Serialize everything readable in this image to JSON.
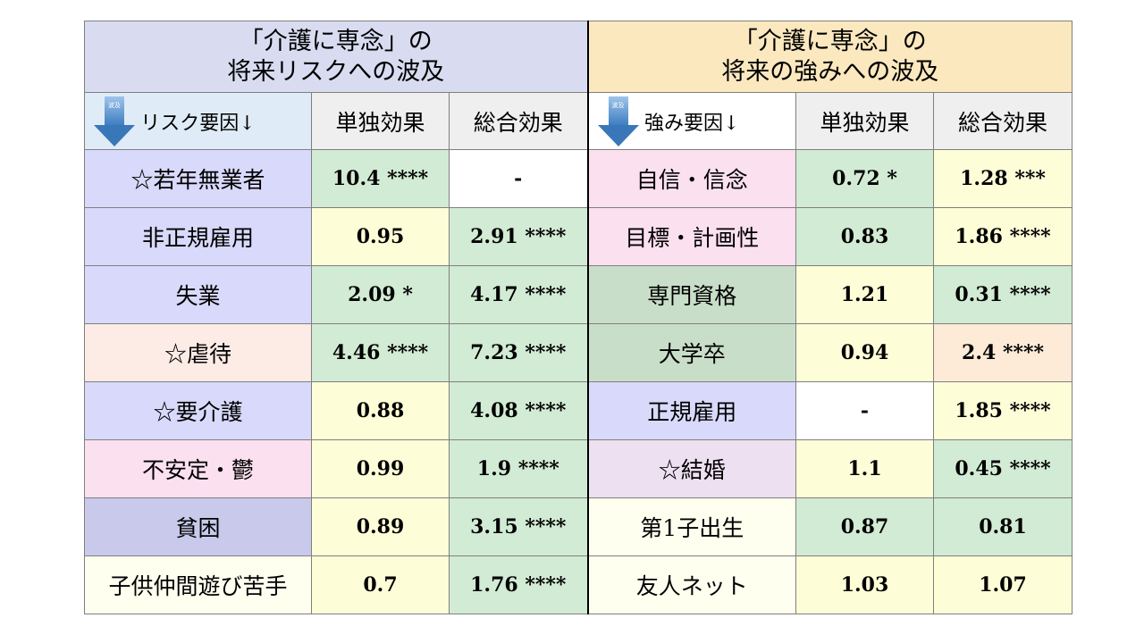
{
  "left_title": {
    "line1": "「介護に専念」の",
    "line2": "将来リスクへの波及"
  },
  "right_title": {
    "line1": "「介護に専念」の",
    "line2": "将来の強みへの波及"
  },
  "headers": {
    "left_factor": "リスク要因↓",
    "right_factor": "強み要因↓",
    "single": "単独効果",
    "total": "総合効果",
    "arrow_tag": "波及"
  },
  "rows": [
    {
      "left_factor": "☆若年無業者",
      "left_single": "10.4 ****",
      "left_total": "-",
      "right_factor": "自信・信念",
      "right_single": "0.72 *",
      "right_total": "1.28 ***"
    },
    {
      "left_factor": "非正規雇用",
      "left_single": "0.95",
      "left_total": "2.91 ****",
      "right_factor": "目標・計画性",
      "right_single": "0.83",
      "right_total": "1.86 ****"
    },
    {
      "left_factor": "失業",
      "left_single": "2.09 *",
      "left_total": "4.17 ****",
      "right_factor": "専門資格",
      "right_single": "1.21",
      "right_total": "0.31 ****"
    },
    {
      "left_factor": "☆虐待",
      "left_single": "4.46 ****",
      "left_total": "7.23 ****",
      "right_factor": "大学卒",
      "right_single": "0.94",
      "right_total": "2.4 ****"
    },
    {
      "left_factor": "☆要介護",
      "left_single": "0.88",
      "left_total": "4.08 ****",
      "right_factor": "正規雇用",
      "right_single": "-",
      "right_total": "1.85 ****"
    },
    {
      "left_factor": "不安定・鬱",
      "left_single": "0.99",
      "left_total": "1.9 ****",
      "right_factor": "☆結婚",
      "right_single": "1.1",
      "right_total": "0.45 ****"
    },
    {
      "left_factor": "貧困",
      "left_single": "0.89",
      "left_total": "3.15 ****",
      "right_factor": "第1子出生",
      "right_single": "0.87",
      "right_total": "0.81"
    },
    {
      "left_factor": "子供仲間遊び苦手",
      "left_single": "0.7",
      "left_total": "1.76 ****",
      "right_factor": "友人ネット",
      "right_single": "1.03",
      "right_total": "1.07"
    }
  ]
}
